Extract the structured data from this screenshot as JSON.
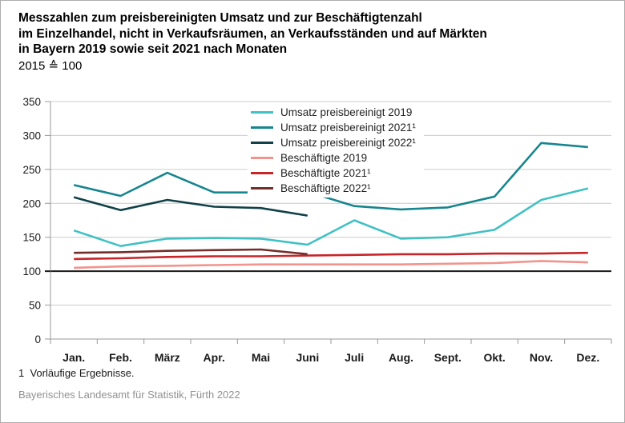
{
  "title": {
    "line1": "Messzahlen zum preisbereinigten Umsatz und zur Beschäftigtenzahl",
    "line2": "im Einzelhandel, nicht in Verkaufsräumen, an Verkaufsständen und auf Märkten",
    "line3": "in Bayern 2019 sowie seit 2021 nach Monaten",
    "subtitle": "2015 ≙ 100"
  },
  "footnote": "1  Vorläufige Ergebnisse.",
  "source": "Bayerisches Landesamt für Statistik, Fürth 2022",
  "colors": {
    "gridline": "#cccccc",
    "axis": "#999999",
    "baseline": "#1a1a1a",
    "label": "#1a1a1a"
  },
  "chart_data": {
    "type": "line",
    "title": "Messzahlen zum preisbereinigten Umsatz und zur Beschäftigtenzahl im Einzelhandel, nicht in Verkaufsräumen, an Verkaufsständen und auf Märkten in Bayern 2019 sowie seit 2021 nach Monaten",
    "subtitle": "2015 ≙ 100",
    "categories": [
      "Jan.",
      "Feb.",
      "März",
      "Apr.",
      "Mai",
      "Juni",
      "Juli",
      "Aug.",
      "Sept.",
      "Okt.",
      "Nov.",
      "Dez."
    ],
    "xlabel": "",
    "ylabel": "",
    "ylim": [
      0,
      350
    ],
    "ytick_step": 50,
    "baseline_value": 100,
    "grid": true,
    "legend_position": "top-center-inside",
    "series": [
      {
        "id": "umsatz-2019",
        "name": "Umsatz preisbereinigt 2019",
        "color": "#41c1c4",
        "values": [
          160,
          137,
          148,
          149,
          148,
          139,
          175,
          148,
          150,
          161,
          205,
          222
        ]
      },
      {
        "id": "umsatz-2021",
        "name": "Umsatz preisbereinigt 2021¹",
        "color": "#17868f",
        "values": [
          227,
          211,
          245,
          216,
          216,
          217,
          196,
          191,
          194,
          210,
          289,
          283
        ]
      },
      {
        "id": "umsatz-2022",
        "name": "Umsatz preisbereinigt 2022¹",
        "color": "#114249",
        "values": [
          209,
          190,
          205,
          195,
          193,
          182
        ]
      },
      {
        "id": "beschaeftigte-2019",
        "name": "Beschäftigte 2019",
        "color": "#f1948d",
        "values": [
          105,
          107,
          108,
          109,
          110,
          110,
          110,
          110,
          111,
          112,
          115,
          113
        ]
      },
      {
        "id": "beschaeftigte-2021",
        "name": "Beschäftigte 2021¹",
        "color": "#c82529",
        "values": [
          118,
          119,
          121,
          122,
          122,
          123,
          124,
          125,
          125,
          126,
          126,
          127
        ]
      },
      {
        "id": "beschaeftigte-2022",
        "name": "Beschäftigte 2022¹",
        "color": "#722e2a",
        "values": [
          127,
          128,
          130,
          131,
          132,
          125
        ]
      }
    ]
  }
}
